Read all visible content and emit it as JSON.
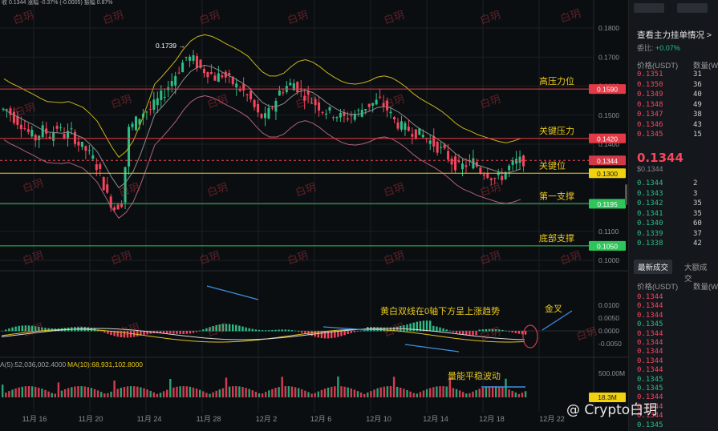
{
  "chart_data": {
    "type": "candlestick",
    "symbol_pair": "USDT",
    "price_axis": {
      "min": 0.1,
      "max": 0.18,
      "ticks": [
        "0.1800",
        "0.1700",
        "0.1600",
        "0.1500",
        "0.1400",
        "0.1300",
        "0.1200",
        "0.1100",
        "0.1000"
      ]
    },
    "macd_axis": {
      "ticks": [
        "0.0100",
        "0.0050",
        "0.0000",
        "-0.0050"
      ]
    },
    "volume_axis": {
      "ticks": [
        "500.00M"
      ]
    },
    "date_labels": [
      "11月 16",
      "11月 20",
      "11月 24",
      "11月 28",
      "12月 2",
      "12月 6",
      "12月 10",
      "12月 14",
      "12月 18",
      "12月 22"
    ],
    "close_path": [
      0.152,
      0.149,
      0.147,
      0.144,
      0.142,
      0.145,
      0.143,
      0.146,
      0.143,
      0.144,
      0.14,
      0.138,
      0.135,
      0.13,
      0.122,
      0.118,
      0.12,
      0.145,
      0.148,
      0.151,
      0.152,
      0.155,
      0.158,
      0.162,
      0.166,
      0.17,
      0.169,
      0.166,
      0.165,
      0.163,
      0.164,
      0.162,
      0.16,
      0.158,
      0.155,
      0.15,
      0.149,
      0.153,
      0.158,
      0.16,
      0.161,
      0.158,
      0.156,
      0.154,
      0.152,
      0.151,
      0.15,
      0.149,
      0.15,
      0.151,
      0.153,
      0.154,
      0.155,
      0.152,
      0.148,
      0.146,
      0.145,
      0.144,
      0.143,
      0.141,
      0.139,
      0.137,
      0.134,
      0.132,
      0.133,
      0.134,
      0.131,
      0.13,
      0.128,
      0.129,
      0.132,
      0.134,
      0.1344
    ],
    "annotations": {
      "high_marker": "0.1739"
    },
    "levels": [
      {
        "name": "高压力位",
        "value": 0.159,
        "label": "0.1590",
        "color": "#e23b47",
        "tag_color": "#e23b47"
      },
      {
        "name": "关键压力",
        "value": 0.142,
        "label": "0.1420",
        "color": "#e23b47",
        "tag_color": "#e23b47"
      },
      {
        "name": "关键位",
        "value": 0.13,
        "label": "0.1300",
        "color": "#e6c619",
        "tag_color": "#f0d20f"
      },
      {
        "name": "第一支撑",
        "value": 0.1195,
        "label": "0.1195",
        "color": "#2ec65a",
        "tag_color": "#2ec65a"
      },
      {
        "name": "底部支撑",
        "value": 0.105,
        "label": "0.1050",
        "color": "#2ec65a",
        "tag_color": "#2ec65a"
      }
    ],
    "current_price_tag": {
      "value": 0.1344,
      "label": "0.1344"
    },
    "macd_note": "黄白双线在0轴下方呈上涨趋势",
    "golden_cross": "金叉",
    "volume_note": "量能平稳波动",
    "ma_label": "MA(10):68,931,102.8000",
    "ma_prefix": "A(5):52,036,002.4000",
    "vol_tag": "18.3M"
  },
  "watermark": "白玥",
  "side": {
    "title": "查看主力挂单情况 >",
    "ratio_label": "委比:",
    "ratio_value": "+0.07%",
    "col_price": "价格(USDT)",
    "col_qty": "数量(W",
    "asks": [
      {
        "p": "0.1351",
        "q": "31"
      },
      {
        "p": "0.1350",
        "q": "36"
      },
      {
        "p": "0.1349",
        "q": "40"
      },
      {
        "p": "0.1348",
        "q": "49"
      },
      {
        "p": "0.1347",
        "q": "38"
      },
      {
        "p": "0.1346",
        "q": "43"
      },
      {
        "p": "0.1345",
        "q": "15"
      }
    ],
    "last_price": "0.1344",
    "last_sub": "$0.1344",
    "bids": [
      {
        "p": "0.1344",
        "q": "2"
      },
      {
        "p": "0.1343",
        "q": "3"
      },
      {
        "p": "0.1342",
        "q": "35"
      },
      {
        "p": "0.1341",
        "q": "35"
      },
      {
        "p": "0.1340",
        "q": "60"
      },
      {
        "p": "0.1339",
        "q": "37"
      },
      {
        "p": "0.1338",
        "q": "42"
      }
    ],
    "tab_latest": "最新成交",
    "tab_big": "大额成交",
    "trades_col_price": "价格(USDT)",
    "trades_col_qty": "数量(W",
    "trades": [
      "0.1344",
      "0.1344",
      "0.1344",
      "0.1345",
      "0.1344",
      "0.1344",
      "0.1344",
      "0.1344",
      "0.1344",
      "0.1345",
      "0.1345",
      "0.1344",
      "0.1344",
      "0.1344",
      "0.1345"
    ]
  },
  "brand": "@ Crypto白玥",
  "top_text": "收 0.1344 涨幅 -0.37% (-0.0005) 振幅 0.87%"
}
